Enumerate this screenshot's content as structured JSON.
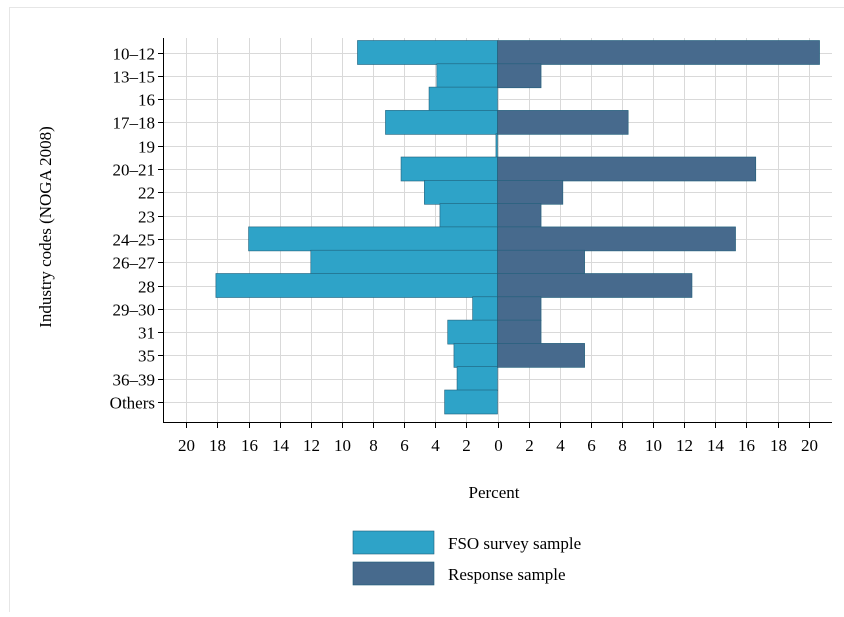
{
  "chart_data": {
    "type": "bar",
    "orientation": "horizontal-butterfly",
    "ylabel": "Industry codes (NOGA 2008)",
    "xlabel": "Percent",
    "categories": [
      "10–12",
      "13–15",
      "16",
      "17–18",
      "19",
      "20–21",
      "22",
      "23",
      "24–25",
      "26–27",
      "28",
      "29–30",
      "31",
      "35",
      "36–39",
      "Others"
    ],
    "series": [
      {
        "name": "FSO survey sample",
        "side": "left",
        "color": "#2ea3c8",
        "values": [
          9.0,
          3.9,
          4.4,
          7.2,
          0.1,
          6.2,
          4.7,
          3.7,
          16.0,
          12.0,
          18.1,
          1.6,
          3.2,
          2.8,
          2.6,
          3.4
        ]
      },
      {
        "name": "Response sample",
        "side": "right",
        "color": "#476a8d",
        "values": [
          20.7,
          2.8,
          0,
          8.4,
          0,
          16.6,
          4.2,
          2.8,
          15.3,
          5.6,
          12.5,
          2.8,
          2.8,
          5.6,
          0,
          0
        ]
      }
    ],
    "xlim": [
      -21.5,
      21.5
    ],
    "xticks": [
      -20,
      -18,
      -16,
      -14,
      -12,
      -10,
      -8,
      -6,
      -4,
      -2,
      0,
      2,
      4,
      6,
      8,
      10,
      12,
      14,
      16,
      18,
      20
    ],
    "xtick_labels": [
      "20",
      "18",
      "16",
      "14",
      "12",
      "10",
      "8",
      "6",
      "4",
      "2",
      "0",
      "2",
      "4",
      "6",
      "8",
      "10",
      "12",
      "14",
      "16",
      "18",
      "20"
    ],
    "grid": true,
    "legend_position": "bottom-center"
  }
}
